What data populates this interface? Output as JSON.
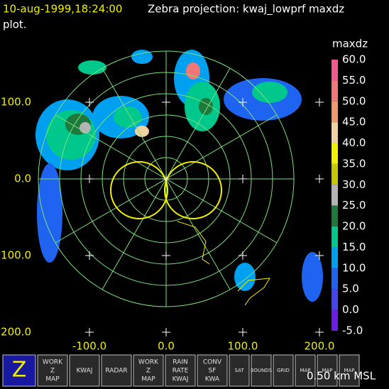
{
  "header": {
    "time": "10-aug-1999,18:24:00",
    "title": "Zebra projection: kwaj_lowprf maxdz",
    "title_cont": "plot."
  },
  "axes": {
    "y_labels": [
      "100.0",
      "0.0",
      "100.0",
      "200.0"
    ],
    "x_labels": [
      "-100.0",
      "0.0",
      "100.0",
      "200.0"
    ]
  },
  "colorbar": {
    "title": "maxdz",
    "levels": [
      {
        "label": "60.0",
        "color": "#f05a8c"
      },
      {
        "label": "55.0",
        "color": "#f07878"
      },
      {
        "label": "50.0",
        "color": "#f09a6a"
      },
      {
        "label": "45.0",
        "color": "#f0d2a0"
      },
      {
        "label": "40.0",
        "color": "#f0f000"
      },
      {
        "label": "35.0",
        "color": "#c8c800"
      },
      {
        "label": "30.0",
        "color": "#b4b4b4"
      },
      {
        "label": "25.0",
        "color": "#1e7a3c"
      },
      {
        "label": "20.0",
        "color": "#00c88c"
      },
      {
        "label": "15.0",
        "color": "#00a0f0"
      },
      {
        "label": "10.0",
        "color": "#1e64f0"
      },
      {
        "label": "5.0",
        "color": "#4646f0"
      },
      {
        "label": "0.0",
        "color": "#6a1ee6"
      },
      {
        "label": "-5.0",
        "color": "#8c00f0"
      }
    ]
  },
  "toolbar": [
    {
      "lines": [
        "Z"
      ]
    },
    {
      "lines": [
        "WORK",
        "Z",
        "MAP"
      ]
    },
    {
      "lines": [
        "KWAJ"
      ]
    },
    {
      "lines": [
        "RADAR"
      ]
    },
    {
      "lines": [
        "WORK",
        "Z",
        "MAP"
      ]
    },
    {
      "lines": [
        "RAIN",
        "RATE",
        "KWAJ"
      ]
    },
    {
      "lines": [
        "CONV",
        "SF",
        "KWA"
      ]
    },
    {
      "lines": [
        "SAT"
      ]
    },
    {
      "lines": [
        "BOUNDS"
      ]
    },
    {
      "lines": [
        "GRID"
      ]
    },
    {
      "lines": [
        "MAP"
      ]
    },
    {
      "lines": [
        "MAP"
      ]
    },
    {
      "lines": [
        "MAP"
      ]
    }
  ],
  "footer": {
    "altitude": "0.50 km MSL"
  }
}
